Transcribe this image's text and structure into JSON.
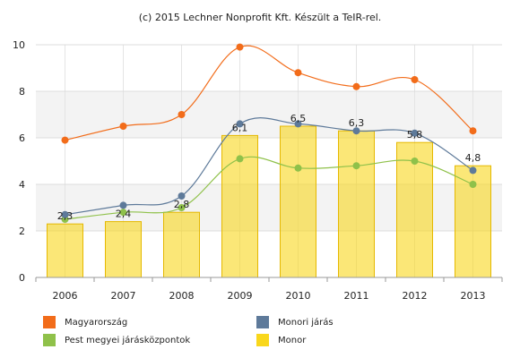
{
  "chart_data": {
    "type": "bar+line",
    "title": "(c) 2015 Lechner Nonprofit Kft. Készült a TeIR-rel.",
    "categories": [
      "2006",
      "2007",
      "2008",
      "2009",
      "2010",
      "2011",
      "2012",
      "2013"
    ],
    "ylim": [
      0,
      10
    ],
    "yticks": [
      "0",
      "2",
      "4",
      "6",
      "8",
      "10"
    ],
    "grid": true,
    "legend_position": "bottom",
    "series": [
      {
        "name": "Monor",
        "kind": "bar",
        "color": "#f9d71c",
        "values": [
          2.3,
          2.4,
          2.8,
          6.1,
          6.5,
          6.3,
          5.8,
          4.8
        ],
        "data_labels": [
          "2,3",
          "2,4",
          "2,8",
          "6,1",
          "6,5",
          "6,3",
          "5,8",
          "4,8"
        ]
      },
      {
        "name": "Magyarország",
        "kind": "line",
        "color": "#f26c1a",
        "values": [
          5.9,
          6.5,
          7.0,
          9.9,
          8.8,
          8.2,
          8.5,
          6.3
        ]
      },
      {
        "name": "Monori járás",
        "kind": "line",
        "color": "#5e7a9a",
        "values": [
          2.7,
          3.1,
          3.5,
          6.6,
          6.6,
          6.3,
          6.2,
          4.6
        ]
      },
      {
        "name": "Pest megyei járásközpontok",
        "kind": "line",
        "color": "#8fc14a",
        "values": [
          2.5,
          2.8,
          3.0,
          5.1,
          4.7,
          4.8,
          5.0,
          4.0
        ]
      }
    ],
    "legend": [
      {
        "name": "Magyarország",
        "color": "#f26c1a"
      },
      {
        "name": "Monori járás",
        "color": "#5e7a9a"
      },
      {
        "name": "Pest megyei járásközpontok",
        "color": "#8fc14a"
      },
      {
        "name": "Monor",
        "color": "#f9d71c"
      }
    ]
  }
}
